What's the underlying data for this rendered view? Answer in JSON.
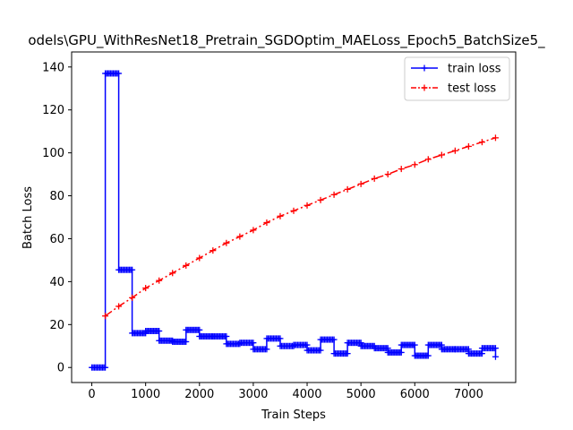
{
  "chart_data": {
    "type": "line",
    "title": "odels\\GPU_WithResNet18_Pretrain_SGDOptim_MAELoss_Epoch5_BatchSize5_",
    "xlabel": "Train Steps",
    "ylabel": "Batch Loss",
    "xlim": [
      -375,
      7875
    ],
    "ylim": [
      -7,
      147
    ],
    "xticks": [
      0,
      1000,
      2000,
      3000,
      4000,
      5000,
      6000,
      7000
    ],
    "yticks": [
      0,
      20,
      40,
      60,
      80,
      100,
      120,
      140
    ],
    "legend_position": "top-right",
    "grid": false,
    "series": [
      {
        "name": "train loss",
        "color": "#0000ff",
        "line_style": "solid",
        "marker": "+",
        "segments": [
          {
            "x_start": 0,
            "x_end": 250,
            "value": 0.0
          },
          {
            "x_start": 250,
            "x_end": 500,
            "value": 137.0
          },
          {
            "x_start": 500,
            "x_end": 750,
            "value": 45.5
          },
          {
            "x_start": 750,
            "x_end": 1000,
            "value": 16.0
          },
          {
            "x_start": 1000,
            "x_end": 1250,
            "value": 17.0
          },
          {
            "x_start": 1250,
            "x_end": 1500,
            "value": 12.5
          },
          {
            "x_start": 1500,
            "x_end": 1750,
            "value": 12.0
          },
          {
            "x_start": 1750,
            "x_end": 2000,
            "value": 17.5
          },
          {
            "x_start": 2000,
            "x_end": 2250,
            "value": 14.5
          },
          {
            "x_start": 2250,
            "x_end": 2500,
            "value": 14.5
          },
          {
            "x_start": 2500,
            "x_end": 2750,
            "value": 11.0
          },
          {
            "x_start": 2750,
            "x_end": 3000,
            "value": 11.5
          },
          {
            "x_start": 3000,
            "x_end": 3250,
            "value": 8.5
          },
          {
            "x_start": 3250,
            "x_end": 3500,
            "value": 13.5
          },
          {
            "x_start": 3500,
            "x_end": 3750,
            "value": 10.0
          },
          {
            "x_start": 3750,
            "x_end": 4000,
            "value": 10.5
          },
          {
            "x_start": 4000,
            "x_end": 4250,
            "value": 8.0
          },
          {
            "x_start": 4250,
            "x_end": 4500,
            "value": 13.0
          },
          {
            "x_start": 4500,
            "x_end": 4750,
            "value": 6.5
          },
          {
            "x_start": 4750,
            "x_end": 5000,
            "value": 11.5
          },
          {
            "x_start": 5000,
            "x_end": 5250,
            "value": 10.0
          },
          {
            "x_start": 5250,
            "x_end": 5500,
            "value": 9.0
          },
          {
            "x_start": 5500,
            "x_end": 5750,
            "value": 7.0
          },
          {
            "x_start": 5750,
            "x_end": 6000,
            "value": 10.5
          },
          {
            "x_start": 6000,
            "x_end": 6250,
            "value": 5.5
          },
          {
            "x_start": 6250,
            "x_end": 6500,
            "value": 10.5
          },
          {
            "x_start": 6500,
            "x_end": 6750,
            "value": 8.5
          },
          {
            "x_start": 6750,
            "x_end": 7000,
            "value": 8.5
          },
          {
            "x_start": 7000,
            "x_end": 7250,
            "value": 6.5
          },
          {
            "x_start": 7250,
            "x_end": 7500,
            "value": 9.0
          }
        ],
        "final_point": {
          "x": 7500,
          "y": 5.0
        }
      },
      {
        "name": "test loss",
        "color": "#ff0000",
        "line_style": "dashdot",
        "marker": "+",
        "x": [
          250,
          500,
          750,
          1000,
          1250,
          1500,
          1750,
          2000,
          2250,
          2500,
          2750,
          3000,
          3250,
          3500,
          3750,
          4000,
          4250,
          4500,
          4750,
          5000,
          5250,
          5500,
          5750,
          6000,
          6250,
          6500,
          6750,
          7000,
          7250,
          7500
        ],
        "y": [
          24.0,
          28.5,
          32.5,
          37.0,
          40.5,
          44.0,
          47.5,
          51.0,
          54.5,
          58.0,
          61.0,
          64.0,
          67.5,
          70.5,
          73.0,
          75.5,
          78.0,
          80.5,
          83.0,
          85.5,
          88.0,
          90.0,
          92.5,
          94.5,
          97.0,
          99.0,
          101.0,
          103.0,
          105.0,
          107.0
        ]
      }
    ]
  }
}
